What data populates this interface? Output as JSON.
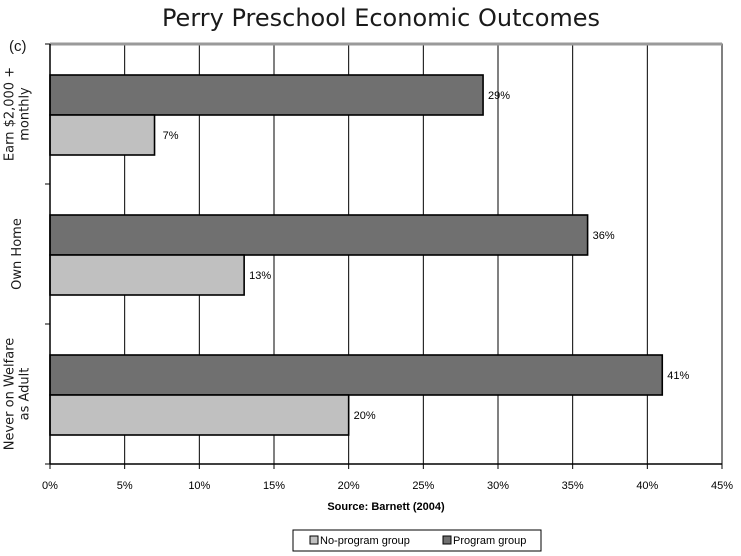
{
  "chart_data": {
    "type": "bar",
    "orientation": "horizontal",
    "title": "Perry Preschool Economic Outcomes",
    "panel_label": "(c)",
    "categories": [
      "Earn $2,000 + monthly",
      "Own Home",
      "Never on Welfare as Adult"
    ],
    "category_lines": [
      [
        "Earn $2,000 +",
        "monthly"
      ],
      [
        "Own Home"
      ],
      [
        "Never on Welfare",
        "as Adult"
      ]
    ],
    "series": [
      {
        "name": "Program group",
        "color": "#707070",
        "values": [
          29,
          36,
          41
        ],
        "labels": [
          "29%",
          "36%",
          "41%"
        ]
      },
      {
        "name": "No-program group",
        "color": "#c0c0c0",
        "values": [
          7,
          13,
          20
        ],
        "labels": [
          "7%",
          "13%",
          "20%"
        ]
      }
    ],
    "xlim": [
      0,
      45
    ],
    "xticks": [
      0,
      5,
      10,
      15,
      20,
      25,
      30,
      35,
      40,
      45
    ],
    "xtick_labels": [
      "0%",
      "5%",
      "10%",
      "15%",
      "20%",
      "25%",
      "30%",
      "35%",
      "40%",
      "45%"
    ],
    "xlabel": "Source: Barnett (2004)",
    "grid": "vertical",
    "legend": {
      "position": "bottom",
      "entries": [
        "No-program group",
        "Program group"
      ]
    }
  }
}
